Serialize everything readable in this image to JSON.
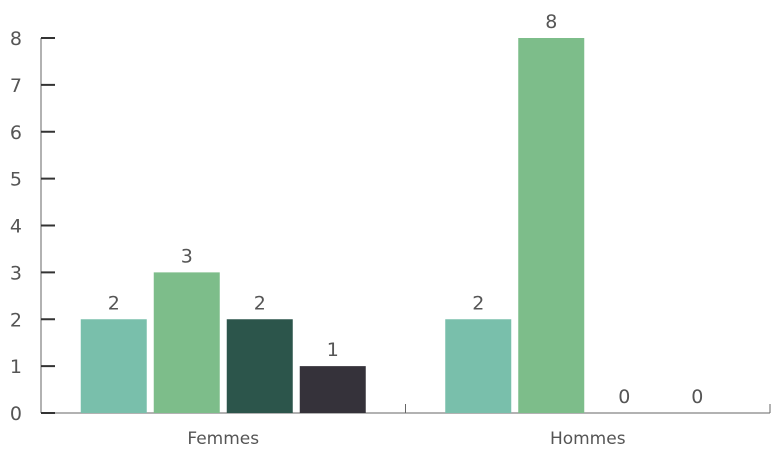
{
  "chart_data": {
    "type": "bar",
    "title": "",
    "xlabel": "",
    "ylabel": "",
    "categories": [
      "Femmes",
      "Hommes"
    ],
    "series": [
      {
        "color": "#79bfab",
        "values": [
          2,
          2
        ]
      },
      {
        "color": "#7dbd8a",
        "values": [
          3,
          8
        ]
      },
      {
        "color": "#2c554b",
        "values": [
          2,
          0
        ]
      },
      {
        "color": "#35323a",
        "values": [
          1,
          0
        ]
      }
    ],
    "ylim": [
      0,
      8
    ],
    "yticks": [
      "0",
      "1",
      "2",
      "3",
      "4",
      "5",
      "6",
      "7",
      "8"
    ],
    "grid": false,
    "legend": "none",
    "data_labels": true
  }
}
